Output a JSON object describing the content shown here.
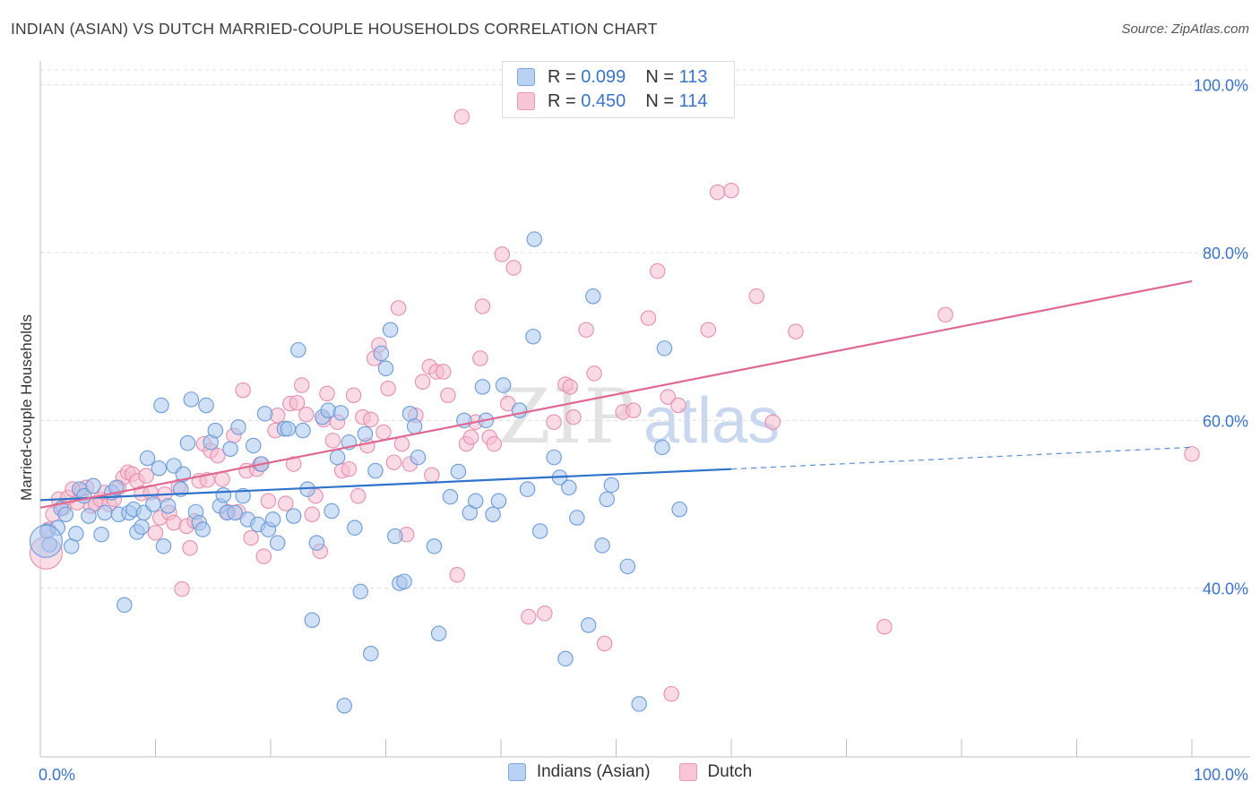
{
  "header": {
    "title": "INDIAN (ASIAN) VS DUTCH MARRIED-COUPLE HOUSEHOLDS CORRELATION CHART",
    "source": "Source: ZipAtlas.com"
  },
  "watermark": {
    "zip": "ZIP",
    "atlas": "atlas"
  },
  "colors": {
    "blue_fill": "#a9c7ef",
    "blue_stroke": "#6b9bd8",
    "blue_line": "#2f72c9",
    "pink_fill": "#f6bccd",
    "pink_stroke": "#e68fab",
    "pink_line": "#e06891",
    "tick_label": "#3b73c9",
    "grid": "#dddddd"
  },
  "legend": {
    "rows": [
      {
        "r_label": "R = ",
        "r_value": "0.099",
        "n_label": "N = ",
        "n_value": "113"
      },
      {
        "r_label": "R = ",
        "r_value": "0.450",
        "n_label": "N = ",
        "n_value": "114"
      }
    ],
    "bottom": [
      "Indians (Asian)",
      "Dutch"
    ]
  },
  "chart_data": {
    "type": "scatter",
    "title": "INDIAN (ASIAN) VS DUTCH MARRIED-COUPLE HOUSEHOLDS CORRELATION CHART",
    "xlabel": "",
    "ylabel": "Married-couple Households",
    "xlim": [
      0,
      100
    ],
    "ylim": [
      20,
      102
    ],
    "x_tick_labels": [
      {
        "value": 0,
        "label": "0.0%"
      },
      {
        "value": 100,
        "label": "100.0%"
      }
    ],
    "y_tick_labels": [
      {
        "value": 40,
        "label": "40.0%"
      },
      {
        "value": 60,
        "label": "60.0%"
      },
      {
        "value": 80,
        "label": "80.0%"
      },
      {
        "value": 100,
        "label": "100.0%"
      }
    ],
    "grid": true,
    "legend_position": "top-center",
    "series": [
      {
        "name": "Indians (Asian)",
        "R": 0.099,
        "N": 113,
        "trend": {
          "x0": 0,
          "y0": 50.5,
          "x1": 60,
          "y1": 54.2,
          "dashed_to_x": 100,
          "dashed_to_y": 56.8
        },
        "points": [
          [
            0.6,
            46.8
          ],
          [
            0.8,
            45.2
          ],
          [
            1.5,
            47.2
          ],
          [
            1.8,
            49.5
          ],
          [
            2.2,
            48.8
          ],
          [
            2.7,
            45.0
          ],
          [
            3.1,
            46.5
          ],
          [
            3.4,
            51.8
          ],
          [
            3.8,
            51.0
          ],
          [
            4.2,
            48.6
          ],
          [
            4.6,
            52.2
          ],
          [
            5.3,
            46.4
          ],
          [
            5.6,
            49.0
          ],
          [
            6.2,
            51.4
          ],
          [
            6.6,
            52.0
          ],
          [
            6.8,
            48.8
          ],
          [
            7.3,
            38.0
          ],
          [
            7.7,
            49.0
          ],
          [
            8.1,
            49.4
          ],
          [
            8.4,
            46.7
          ],
          [
            8.8,
            47.3
          ],
          [
            9.0,
            49.0
          ],
          [
            9.3,
            55.5
          ],
          [
            9.8,
            50.0
          ],
          [
            10.3,
            54.3
          ],
          [
            10.5,
            61.8
          ],
          [
            10.7,
            45.0
          ],
          [
            11.1,
            49.8
          ],
          [
            11.6,
            54.6
          ],
          [
            12.2,
            51.8
          ],
          [
            12.4,
            53.6
          ],
          [
            12.8,
            57.3
          ],
          [
            13.1,
            62.5
          ],
          [
            13.5,
            49.1
          ],
          [
            13.8,
            47.8
          ],
          [
            14.1,
            47.0
          ],
          [
            14.4,
            61.8
          ],
          [
            14.8,
            57.4
          ],
          [
            15.2,
            58.8
          ],
          [
            15.6,
            49.8
          ],
          [
            15.9,
            51.1
          ],
          [
            16.2,
            49.0
          ],
          [
            16.5,
            56.6
          ],
          [
            16.9,
            49.0
          ],
          [
            17.2,
            59.2
          ],
          [
            17.6,
            51.0
          ],
          [
            18.0,
            48.2
          ],
          [
            18.5,
            57.0
          ],
          [
            18.9,
            47.6
          ],
          [
            19.2,
            54.8
          ],
          [
            19.5,
            60.8
          ],
          [
            19.8,
            47.0
          ],
          [
            20.2,
            48.2
          ],
          [
            20.6,
            45.4
          ],
          [
            21.2,
            59.0
          ],
          [
            21.5,
            59.0
          ],
          [
            22.0,
            48.6
          ],
          [
            22.4,
            68.4
          ],
          [
            22.8,
            58.8
          ],
          [
            23.2,
            51.8
          ],
          [
            23.6,
            36.2
          ],
          [
            24.0,
            45.4
          ],
          [
            24.5,
            60.4
          ],
          [
            25.0,
            61.2
          ],
          [
            25.3,
            49.2
          ],
          [
            25.8,
            55.6
          ],
          [
            26.1,
            60.9
          ],
          [
            26.4,
            26.0
          ],
          [
            26.8,
            57.4
          ],
          [
            27.3,
            47.2
          ],
          [
            27.8,
            39.6
          ],
          [
            28.2,
            58.4
          ],
          [
            28.7,
            32.2
          ],
          [
            29.1,
            54.0
          ],
          [
            29.6,
            68.0
          ],
          [
            30.0,
            66.2
          ],
          [
            30.4,
            70.8
          ],
          [
            30.8,
            46.2
          ],
          [
            31.2,
            40.6
          ],
          [
            31.6,
            40.8
          ],
          [
            32.1,
            60.8
          ],
          [
            32.5,
            59.3
          ],
          [
            32.8,
            55.6
          ],
          [
            34.2,
            45.0
          ],
          [
            34.6,
            34.6
          ],
          [
            35.6,
            50.9
          ],
          [
            36.3,
            53.9
          ],
          [
            36.8,
            60.0
          ],
          [
            37.3,
            49.0
          ],
          [
            37.8,
            50.4
          ],
          [
            38.4,
            64.0
          ],
          [
            38.7,
            60.0
          ],
          [
            39.3,
            48.8
          ],
          [
            39.8,
            50.4
          ],
          [
            40.2,
            64.2
          ],
          [
            41.6,
            61.2
          ],
          [
            42.3,
            51.8
          ],
          [
            42.8,
            70.0
          ],
          [
            42.9,
            81.6
          ],
          [
            43.4,
            46.8
          ],
          [
            44.6,
            55.6
          ],
          [
            45.1,
            53.2
          ],
          [
            45.6,
            31.6
          ],
          [
            45.9,
            52.0
          ],
          [
            46.6,
            48.4
          ],
          [
            47.6,
            35.6
          ],
          [
            48.0,
            74.8
          ],
          [
            48.8,
            45.1
          ],
          [
            49.2,
            50.6
          ],
          [
            49.6,
            52.3
          ],
          [
            51.0,
            42.6
          ],
          [
            52.0,
            26.2
          ],
          [
            54.0,
            56.8
          ],
          [
            54.2,
            68.6
          ],
          [
            55.5,
            49.4
          ]
        ],
        "point_sizes_note": "most points small; one large point near x=0.5",
        "large_points": [
          [
            0.5,
            45.6
          ]
        ]
      },
      {
        "name": "Dutch",
        "R": 0.45,
        "N": 114,
        "trend": {
          "x0": 0,
          "y0": 49.6,
          "x1": 100,
          "y1": 76.6
        },
        "points": [
          [
            0.7,
            47.0
          ],
          [
            1.1,
            48.8
          ],
          [
            1.6,
            50.6
          ],
          [
            2.0,
            49.6
          ],
          [
            2.4,
            50.8
          ],
          [
            2.8,
            51.8
          ],
          [
            3.2,
            50.2
          ],
          [
            3.6,
            51.6
          ],
          [
            4.0,
            52.0
          ],
          [
            4.4,
            49.8
          ],
          [
            4.8,
            50.1
          ],
          [
            5.2,
            50.6
          ],
          [
            5.6,
            51.4
          ],
          [
            6.0,
            50.0
          ],
          [
            6.4,
            50.6
          ],
          [
            6.8,
            52.0
          ],
          [
            7.2,
            53.2
          ],
          [
            7.6,
            53.8
          ],
          [
            8.0,
            53.6
          ],
          [
            8.4,
            52.8
          ],
          [
            8.8,
            51.3
          ],
          [
            9.2,
            53.4
          ],
          [
            9.6,
            51.4
          ],
          [
            10.0,
            46.6
          ],
          [
            10.4,
            48.4
          ],
          [
            10.8,
            51.2
          ],
          [
            11.2,
            49.0
          ],
          [
            11.6,
            47.8
          ],
          [
            12.0,
            52.1
          ],
          [
            12.3,
            39.9
          ],
          [
            12.7,
            47.4
          ],
          [
            13.0,
            44.8
          ],
          [
            13.4,
            48.0
          ],
          [
            13.8,
            52.8
          ],
          [
            14.2,
            57.2
          ],
          [
            14.5,
            52.9
          ],
          [
            14.8,
            56.4
          ],
          [
            15.4,
            55.8
          ],
          [
            15.8,
            53.0
          ],
          [
            16.3,
            49.1
          ],
          [
            16.8,
            58.2
          ],
          [
            17.2,
            49.1
          ],
          [
            17.6,
            63.6
          ],
          [
            17.9,
            54.0
          ],
          [
            18.3,
            46.0
          ],
          [
            18.8,
            54.2
          ],
          [
            19.1,
            54.8
          ],
          [
            19.4,
            43.8
          ],
          [
            19.8,
            50.4
          ],
          [
            20.4,
            58.8
          ],
          [
            20.6,
            60.6
          ],
          [
            21.3,
            50.1
          ],
          [
            21.7,
            62.0
          ],
          [
            22.0,
            54.8
          ],
          [
            22.3,
            62.1
          ],
          [
            22.7,
            64.2
          ],
          [
            23.1,
            60.7
          ],
          [
            23.6,
            48.8
          ],
          [
            23.9,
            51.0
          ],
          [
            24.3,
            44.4
          ],
          [
            24.6,
            60.1
          ],
          [
            24.9,
            63.2
          ],
          [
            25.4,
            57.6
          ],
          [
            25.8,
            59.8
          ],
          [
            26.2,
            54.0
          ],
          [
            26.8,
            54.2
          ],
          [
            27.2,
            63.0
          ],
          [
            27.6,
            51.0
          ],
          [
            28.0,
            60.4
          ],
          [
            28.4,
            57.0
          ],
          [
            28.7,
            60.1
          ],
          [
            29.0,
            67.4
          ],
          [
            29.4,
            69.0
          ],
          [
            29.8,
            58.6
          ],
          [
            30.2,
            63.8
          ],
          [
            30.7,
            55.0
          ],
          [
            31.1,
            73.4
          ],
          [
            31.4,
            57.2
          ],
          [
            31.8,
            46.4
          ],
          [
            32.1,
            54.8
          ],
          [
            32.6,
            60.6
          ],
          [
            33.2,
            64.6
          ],
          [
            33.8,
            66.4
          ],
          [
            34.0,
            53.5
          ],
          [
            34.4,
            65.8
          ],
          [
            35.0,
            65.8
          ],
          [
            35.4,
            63.0
          ],
          [
            36.2,
            41.6
          ],
          [
            36.6,
            96.2
          ],
          [
            37.0,
            57.2
          ],
          [
            37.4,
            58.0
          ],
          [
            37.8,
            59.8
          ],
          [
            38.2,
            67.4
          ],
          [
            38.4,
            73.6
          ],
          [
            39.0,
            58.0
          ],
          [
            39.4,
            57.2
          ],
          [
            40.1,
            79.8
          ],
          [
            40.6,
            62.0
          ],
          [
            41.1,
            78.2
          ],
          [
            42.4,
            36.6
          ],
          [
            43.8,
            37.0
          ],
          [
            44.6,
            59.8
          ],
          [
            45.6,
            64.3
          ],
          [
            46.0,
            64.0
          ],
          [
            46.3,
            60.4
          ],
          [
            47.4,
            70.8
          ],
          [
            48.1,
            65.6
          ],
          [
            49.0,
            33.4
          ],
          [
            50.6,
            61.0
          ],
          [
            51.5,
            61.2
          ],
          [
            52.8,
            72.2
          ],
          [
            53.6,
            77.8
          ],
          [
            54.5,
            62.8
          ],
          [
            54.8,
            27.4
          ],
          [
            55.4,
            61.8
          ],
          [
            58.0,
            70.8
          ],
          [
            58.8,
            87.2
          ],
          [
            60.0,
            87.4
          ],
          [
            62.2,
            74.8
          ],
          [
            63.6,
            59.8
          ],
          [
            65.6,
            70.6
          ],
          [
            73.3,
            35.4
          ],
          [
            78.6,
            72.6
          ],
          [
            100.0,
            56.0
          ]
        ],
        "large_points": [
          [
            0.5,
            44.2
          ]
        ]
      }
    ]
  }
}
